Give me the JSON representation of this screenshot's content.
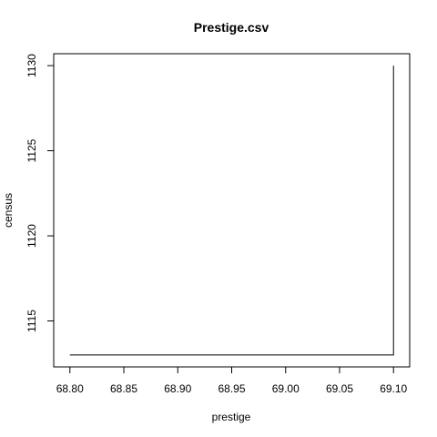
{
  "chart_data": {
    "type": "line",
    "title": "Prestige.csv",
    "xlabel": "prestige",
    "ylabel": "census",
    "xlim": [
      68.785,
      69.115
    ],
    "ylim": [
      1112.3,
      1130.7
    ],
    "x_ticks": [
      "68.80",
      "68.85",
      "68.90",
      "68.95",
      "69.00",
      "69.05",
      "69.10"
    ],
    "y_ticks": [
      "1115",
      "1120",
      "1125",
      "1130"
    ],
    "grid": false,
    "legend": "none",
    "series": [
      {
        "x": [
          68.8,
          69.1,
          69.1
        ],
        "y": [
          1113,
          1113,
          1130
        ],
        "color": "#000000"
      }
    ]
  }
}
